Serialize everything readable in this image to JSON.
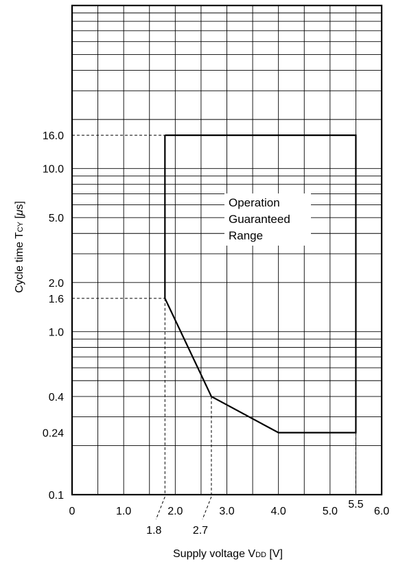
{
  "chart_data": {
    "type": "line",
    "xlabel": "Supply voltage V",
    "xlabel_sub": "DD",
    "xlabel_unit": " [V]",
    "ylabel": "Cycle time T",
    "ylabel_sub": "CY",
    "ylabel_unit": " [",
    "ylabel_mu": "μ",
    "ylabel_end": "s]",
    "xlim": [
      0,
      6.0
    ],
    "ylim": [
      0.1,
      100
    ],
    "y_scale": "log",
    "grid": true,
    "x_ticks": [
      {
        "value": 0,
        "label": "0"
      },
      {
        "value": 1.0,
        "label": "1.0"
      },
      {
        "value": 2.0,
        "label": "2.0"
      },
      {
        "value": 3.0,
        "label": "3.0"
      },
      {
        "value": 4.0,
        "label": "4.0"
      },
      {
        "value": 5.0,
        "label": "5.0"
      },
      {
        "value": 6.0,
        "label": "6.0"
      }
    ],
    "y_ticks": [
      {
        "value": 0.1,
        "label": "0.1"
      },
      {
        "value": 0.24,
        "label": "0.24"
      },
      {
        "value": 0.4,
        "label": "0.4"
      },
      {
        "value": 1.0,
        "label": "1.0"
      },
      {
        "value": 1.6,
        "label": "1.6"
      },
      {
        "value": 2.0,
        "label": "2.0"
      },
      {
        "value": 5.0,
        "label": "5.0"
      },
      {
        "value": 10.0,
        "label": "10.0"
      },
      {
        "value": 16.0,
        "label": "16.0"
      }
    ],
    "annotations_x": [
      {
        "value": 1.8,
        "label": "1.8"
      },
      {
        "value": 2.7,
        "label": "2.7"
      },
      {
        "value": 5.5,
        "label": "5.5"
      }
    ],
    "region": {
      "label_lines": [
        "Operation",
        "Guaranteed",
        "Range"
      ],
      "boundary": [
        {
          "x": 1.8,
          "y": 16.0
        },
        {
          "x": 5.5,
          "y": 16.0
        },
        {
          "x": 5.5,
          "y": 0.24
        },
        {
          "x": 4.0,
          "y": 0.24
        },
        {
          "x": 2.7,
          "y": 0.4
        },
        {
          "x": 1.8,
          "y": 1.6
        },
        {
          "x": 1.8,
          "y": 16.0
        }
      ]
    }
  }
}
